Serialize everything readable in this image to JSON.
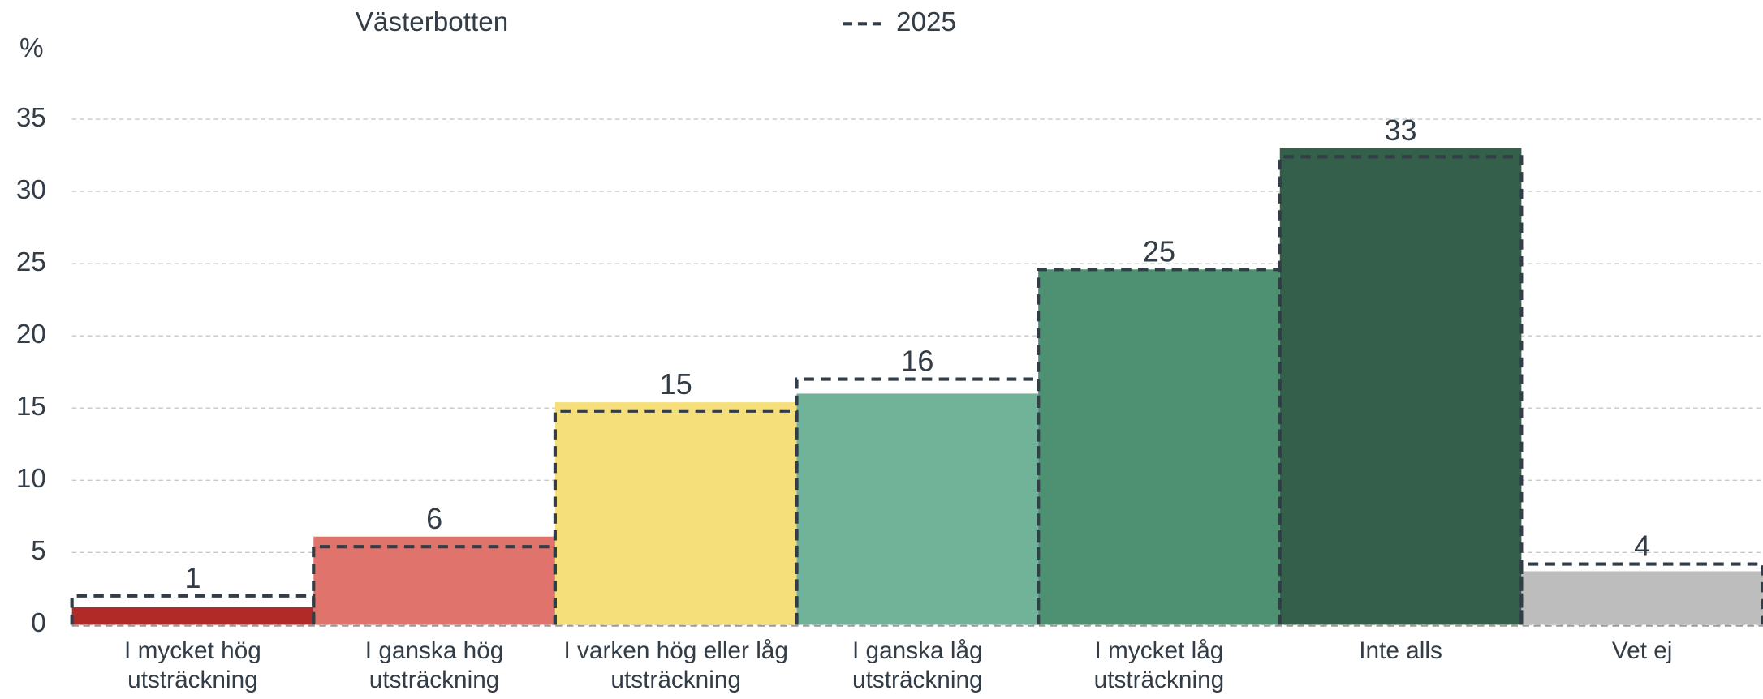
{
  "chart_data": {
    "type": "bar",
    "y_label": "%",
    "categories": [
      "I mycket hög utsträckning",
      "I ganska hög utsträckning",
      "I varken hög eller låg utsträckning",
      "I ganska låg utsträckning",
      "I mycket låg utsträckning",
      "Inte alls",
      "Vet ej"
    ],
    "series": [
      {
        "name": "Västerbotten",
        "colors": [
          "#b22a27",
          "#e0736b",
          "#f5df7b",
          "#71b398",
          "#4e9172",
          "#335f4b",
          "#bdbdbd"
        ],
        "values": [
          1.2,
          6.1,
          15.4,
          16,
          24.6,
          33,
          3.7
        ],
        "value_labels": [
          "1",
          "6",
          "15",
          "16",
          "25",
          "33",
          "4"
        ]
      },
      {
        "name": "2025",
        "color": "#333d47",
        "style": "dashed",
        "values": [
          2,
          5.4,
          14.8,
          17,
          24.6,
          32.4,
          4.2
        ]
      }
    ],
    "ylim": [
      0,
      35
    ],
    "yticks": [
      0,
      5,
      10,
      15,
      20,
      25,
      30,
      35
    ],
    "grid": true
  }
}
